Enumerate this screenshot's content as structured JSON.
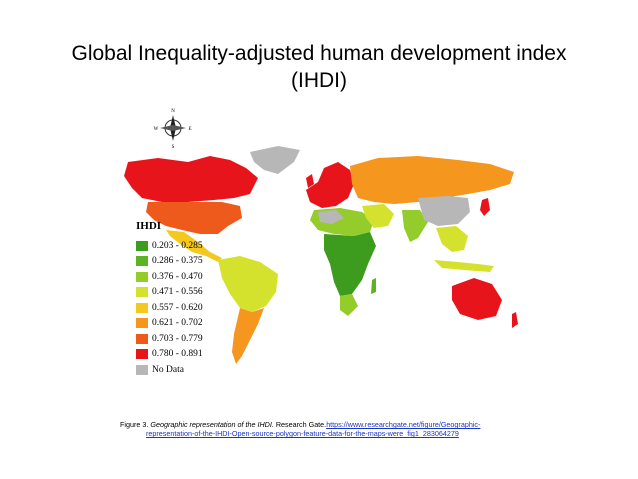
{
  "slide": {
    "title_line1": "Global Inequality-adjusted human development index",
    "title_line2": "(IHDI)"
  },
  "compass": {
    "n": "N",
    "s": "S",
    "e": "E",
    "w": "W"
  },
  "legend": {
    "title": "IHDI",
    "items": [
      {
        "label": "0.203 - 0.285",
        "color": "#3d9b1d"
      },
      {
        "label": "0.286 - 0.375",
        "color": "#5cb324"
      },
      {
        "label": "0.376 - 0.470",
        "color": "#94cc2b"
      },
      {
        "label": "0.471 - 0.556",
        "color": "#d4e22e"
      },
      {
        "label": "0.557 - 0.620",
        "color": "#f4c91f"
      },
      {
        "label": "0.621 - 0.702",
        "color": "#f5961f"
      },
      {
        "label": "0.703 - 0.779",
        "color": "#ee5a1c"
      },
      {
        "label": "0.780 - 0.891",
        "color": "#e8141b"
      },
      {
        "label": "No Data",
        "color": "#b7b7b7"
      }
    ]
  },
  "caption": {
    "prefix": "Figure 3. ",
    "title_italic": "Geographic representation of the IHDI.",
    "source": " Research Gate.",
    "link_line1": "https://www.researchgate.net/figure/Geographic-",
    "link_line2": "representation-of-the-IHDI-Open-source-polygon-feature-data-for-the-maps-were_fig1_283064279"
  }
}
